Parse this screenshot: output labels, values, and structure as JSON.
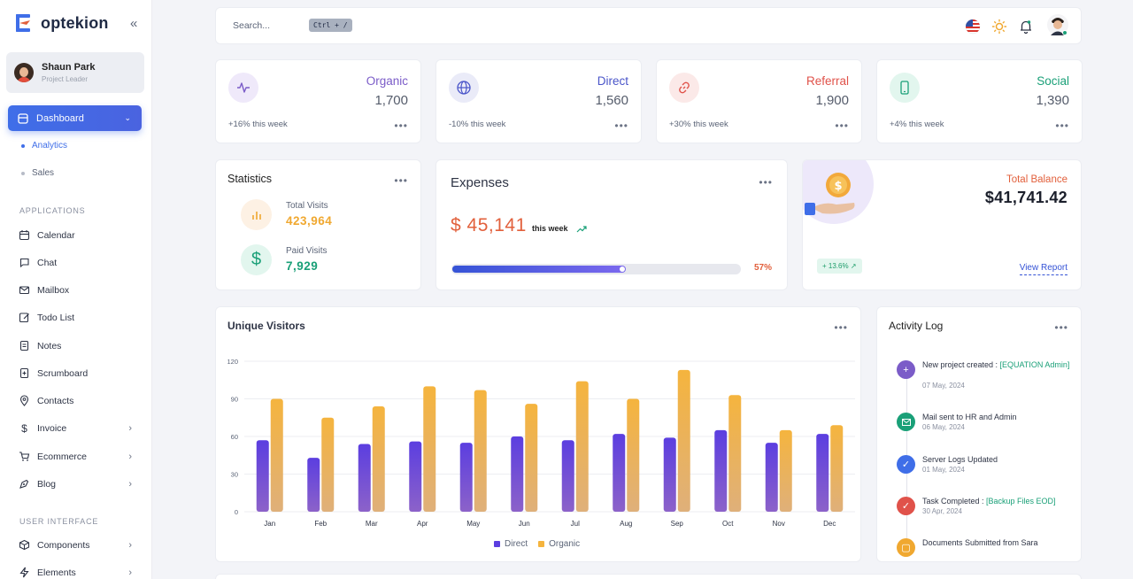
{
  "app": {
    "name": "optekion"
  },
  "user": {
    "name": "Shaun Park",
    "role": "Project Leader"
  },
  "sidebar": {
    "dashboard": "Dashboard",
    "sub": [
      "Analytics",
      "Sales"
    ],
    "section_applications": "APPLICATIONS",
    "applications": [
      "Calendar",
      "Chat",
      "Mailbox",
      "Todo List",
      "Notes",
      "Scrumboard",
      "Contacts",
      "Invoice",
      "Ecommerce",
      "Blog"
    ],
    "section_ui": "USER INTERFACE",
    "ui": [
      "Components",
      "Elements"
    ]
  },
  "topbar": {
    "search_placeholder": "Search...",
    "shortcut": "Ctrl + /"
  },
  "stats": [
    {
      "title": "Organic",
      "value": "1,700",
      "trend": "+16% this week",
      "color": "#7b5cc8",
      "icon": "activity-icon"
    },
    {
      "title": "Direct",
      "value": "1,560",
      "trend": "-10% this week",
      "color": "#4a55c9",
      "icon": "globe-icon"
    },
    {
      "title": "Referral",
      "value": "1,900",
      "trend": "+30% this week",
      "color": "#e0524a",
      "icon": "link-icon"
    },
    {
      "title": "Social",
      "value": "1,390",
      "trend": "+4% this week",
      "color": "#1aa078",
      "icon": "phone-icon"
    }
  ],
  "statistics": {
    "title": "Statistics",
    "total_visits_label": "Total Visits",
    "total_visits": "423,964",
    "paid_visits_label": "Paid Visits",
    "paid_visits": "7,929"
  },
  "expenses": {
    "title": "Expenses",
    "amount": "$ 45,141",
    "period": "this week",
    "percent_label": "57%",
    "progress": 0.57
  },
  "balance": {
    "label": "Total Balance",
    "value": "$41,741.42",
    "badge": "+ 13.6%",
    "link": "View Report"
  },
  "visitors": {
    "title": "Unique Visitors",
    "legend_direct": "Direct",
    "legend_organic": "Organic"
  },
  "chart_data": {
    "type": "bar",
    "categories": [
      "Jan",
      "Feb",
      "Mar",
      "Apr",
      "May",
      "Jun",
      "Jul",
      "Aug",
      "Sep",
      "Oct",
      "Nov",
      "Dec"
    ],
    "series": [
      {
        "name": "Direct",
        "values": [
          57,
          43,
          54,
          56,
          55,
          60,
          57,
          62,
          59,
          65,
          55,
          62
        ]
      },
      {
        "name": "Organic",
        "values": [
          90,
          75,
          84,
          100,
          97,
          86,
          104,
          90,
          113,
          93,
          65,
          69
        ]
      }
    ],
    "ylim": [
      0,
      120
    ],
    "yticks": [
      0,
      30,
      60,
      90,
      120
    ],
    "grid": true,
    "legend": "bottom"
  },
  "activity": {
    "title": "Activity Log",
    "items": [
      {
        "text": "New project created : ",
        "highlight": "[EQUATION Admin]",
        "date": "07 May, 2024",
        "color": "#7b5cc8"
      },
      {
        "text": "Mail sent to HR and Admin",
        "highlight": "",
        "date": "06 May, 2024",
        "color": "#1aa078"
      },
      {
        "text": "Server Logs Updated",
        "highlight": "",
        "date": "01 May, 2024",
        "color": "#3f6ee8"
      },
      {
        "text": "Task Completed : ",
        "highlight": "[Backup Files EOD]",
        "date": "30 Apr, 2024",
        "color": "#e0524a"
      },
      {
        "text": "Documents Submitted from Sara",
        "highlight": "",
        "date": "",
        "color": "#f0a830"
      }
    ]
  }
}
